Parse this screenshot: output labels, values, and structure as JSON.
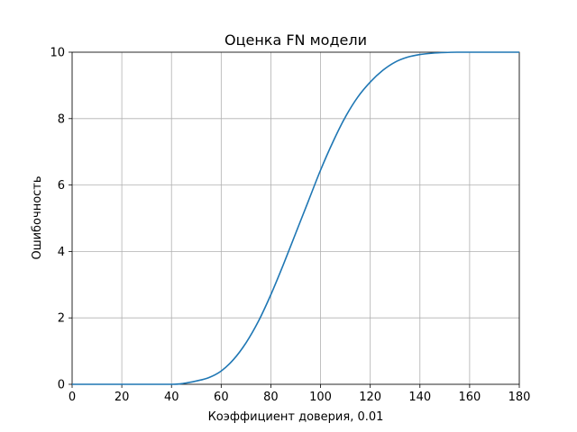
{
  "chart_data": {
    "type": "line",
    "title": "Оценка FN модели",
    "xlabel": "Коэффициент доверия, 0.01",
    "ylabel": "Ошибочность",
    "xlim": [
      0,
      180
    ],
    "ylim": [
      0,
      10
    ],
    "xticks": [
      0,
      20,
      40,
      60,
      80,
      100,
      120,
      140,
      160,
      180
    ],
    "yticks": [
      0,
      2,
      4,
      6,
      8,
      10
    ],
    "grid": true,
    "series": [
      {
        "color": "#1f77b4",
        "x": [
          0,
          20,
          40,
          45,
          50,
          55,
          60,
          65,
          70,
          75,
          80,
          85,
          90,
          95,
          100,
          105,
          110,
          115,
          120,
          125,
          130,
          135,
          140,
          145,
          150,
          155,
          160,
          170,
          180
        ],
        "y": [
          0,
          0,
          0,
          0.03,
          0.1,
          0.2,
          0.4,
          0.75,
          1.25,
          1.9,
          2.7,
          3.6,
          4.55,
          5.5,
          6.45,
          7.3,
          8.05,
          8.65,
          9.1,
          9.45,
          9.7,
          9.85,
          9.93,
          9.97,
          9.99,
          10,
          10,
          10,
          10
        ]
      }
    ]
  }
}
